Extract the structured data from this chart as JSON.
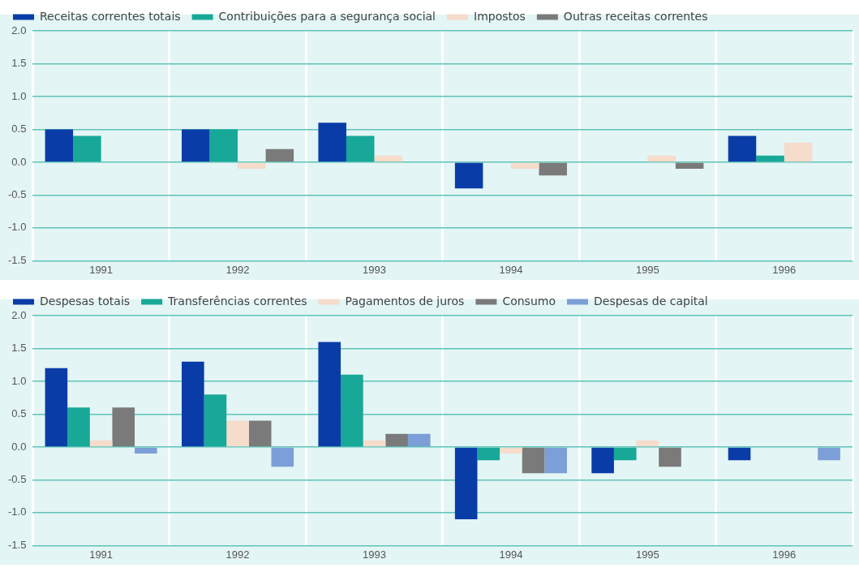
{
  "chart_data": [
    {
      "type": "bar",
      "categories": [
        "1991",
        "1992",
        "1993",
        "1994",
        "1995",
        "1996"
      ],
      "series": [
        {
          "name": "Receitas correntes totais",
          "color": "#0a3ca8",
          "values": [
            0.5,
            0.5,
            0.6,
            -0.4,
            null,
            0.4
          ]
        },
        {
          "name": "Contribuições para a segurança social",
          "color": "#17a898",
          "values": [
            0.4,
            0.5,
            0.4,
            null,
            null,
            0.1
          ]
        },
        {
          "name": "Impostos",
          "color": "#f5dccb",
          "values": [
            null,
            -0.1,
            0.1,
            -0.1,
            0.1,
            0.3
          ]
        },
        {
          "name": "Outras receitas correntes",
          "color": "#7a7a7a",
          "values": [
            null,
            0.2,
            null,
            -0.2,
            -0.1,
            null
          ]
        }
      ],
      "ylim": [
        -1.5,
        2.0
      ],
      "yticks": [
        {
          "value": -1.5,
          "label": "-1.5"
        },
        {
          "value": -1,
          "label": "-1.0"
        },
        {
          "value": -0.5,
          "label": "-0.5"
        },
        {
          "value": 0,
          "label": "0.0"
        },
        {
          "value": 0.5,
          "label": "0.5"
        },
        {
          "value": 1,
          "label": "1.0"
        },
        {
          "value": 1.5,
          "label": "1.5"
        },
        {
          "value": 2,
          "label": "2.0"
        }
      ],
      "grid": true,
      "legend": "top left"
    },
    {
      "type": "bar",
      "categories": [
        "1991",
        "1992",
        "1993",
        "1994",
        "1995",
        "1996"
      ],
      "series": [
        {
          "name": "Despesas totais",
          "color": "#0a3ca8",
          "values": [
            1.2,
            1.3,
            1.6,
            -1.1,
            -0.4,
            -0.2
          ]
        },
        {
          "name": "Transferências correntes",
          "color": "#17a898",
          "values": [
            0.6,
            0.8,
            1.1,
            -0.2,
            -0.2,
            null
          ]
        },
        {
          "name": "Pagamentos de juros",
          "color": "#f5dccb",
          "values": [
            0.1,
            0.4,
            0.1,
            -0.1,
            0.1,
            null
          ]
        },
        {
          "name": "Consumo",
          "color": "#7a7a7a",
          "values": [
            0.6,
            0.4,
            0.2,
            -0.4,
            -0.3,
            null
          ]
        },
        {
          "name": "Despesas de capital",
          "color": "#7b9fd6",
          "values": [
            -0.1,
            -0.3,
            0.2,
            -0.4,
            null,
            -0.2
          ]
        }
      ],
      "ylim": [
        -1.5,
        2.0
      ],
      "yticks": [
        {
          "value": -1.5,
          "label": "-1.5"
        },
        {
          "value": -1,
          "label": "-1.0"
        },
        {
          "value": -0.5,
          "label": "-0.5"
        },
        {
          "value": 0,
          "label": "0.0"
        },
        {
          "value": 0.5,
          "label": "0.5"
        },
        {
          "value": 1,
          "label": "1.0"
        },
        {
          "value": 1.5,
          "label": "1.5"
        },
        {
          "value": 2,
          "label": "2.0"
        }
      ],
      "grid": true,
      "legend": "top left"
    }
  ]
}
